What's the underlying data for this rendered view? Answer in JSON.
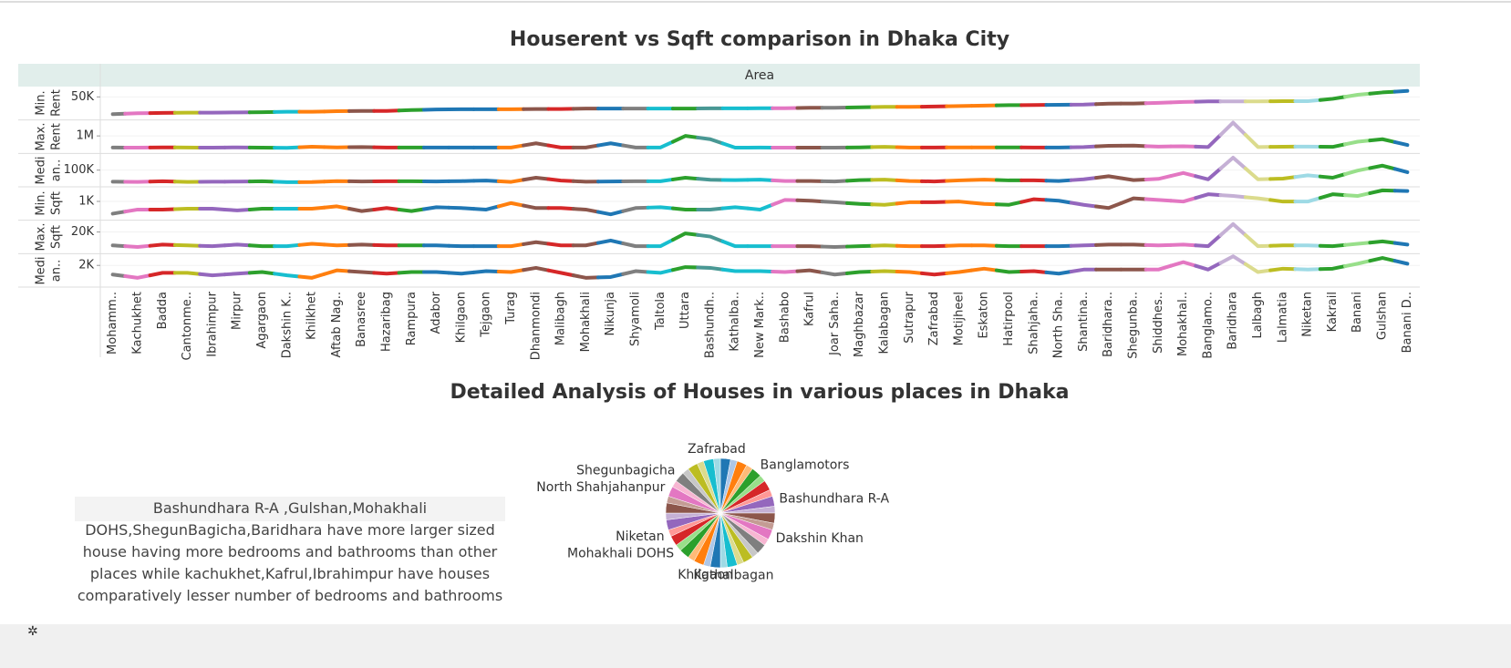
{
  "chart_data": [
    {
      "type": "line",
      "title": "Houserent vs Sqft comparison in Dhaka City",
      "header": "Area",
      "categories": [
        "Mohamm..",
        "Kachukhet",
        "Badda",
        "Cantonme..",
        "Ibrahimpur",
        "Mirpur",
        "Agargaon",
        "Dakshin K..",
        "Khilkhet",
        "Aftab Nag..",
        "Banasree",
        "Hazaribag",
        "Rampura",
        "Adabor",
        "Khilgaon",
        "Tejgaon",
        "Turag",
        "Dhanmondi",
        "Malibagh",
        "Mohakhali",
        "Nikunja",
        "Shyamoli",
        "Taltola",
        "Uttara",
        "Bashundh..",
        "Kathalba..",
        "New Mark..",
        "Bashabo",
        "Kafrul",
        "Joar Saha..",
        "Maghbazar",
        "Kalabagan",
        "Sutrapur",
        "Zafrabad",
        "Motijheel",
        "Eskaton",
        "Hatirpool",
        "Shahjaha..",
        "North Sha..",
        "Shantina..",
        "Baridhara..",
        "Shegunba..",
        "Shiddhes..",
        "Mohakhal..",
        "Banglamo..",
        "Baridhara",
        "Lalbagh",
        "Lalmatia",
        "Niketan",
        "Kakrail",
        "Banani",
        "Gulshan",
        "Banani D.."
      ],
      "colors": [
        "#7f7f7f",
        "#e377c2",
        "#d62728",
        "#bcbd22",
        "#9467bd",
        "#9467bd",
        "#2ca02c",
        "#17becf",
        "#ff7f0e",
        "#ff7f0e",
        "#8c564b",
        "#d62728",
        "#2ca02c",
        "#1f77b4",
        "#1f77b4",
        "#1f77b4",
        "#ff7f0e",
        "#8c564b",
        "#d62728",
        "#8c564b",
        "#1f77b4",
        "#7f7f7f",
        "#17becf",
        "#2ca02c",
        "#499894",
        "#17becf",
        "#17becf",
        "#e377c2",
        "#8c564b",
        "#7f7f7f",
        "#2ca02c",
        "#bcbd22",
        "#ff7f0e",
        "#d62728",
        "#ff7f0e",
        "#ff7f0e",
        "#2ca02c",
        "#d62728",
        "#1f77b4",
        "#9467bd",
        "#8c564b",
        "#8c564b",
        "#e377c2",
        "#e377c2",
        "#9467bd",
        "#c5b0d5",
        "#dbdb8d",
        "#bcbd22",
        "#9edae5",
        "#2ca02c",
        "#98df8a",
        "#2ca02c",
        "#1f77b4"
      ],
      "grid": true,
      "series": [
        {
          "name": "Min. Rent",
          "ylim": [
            0,
            70000
          ],
          "yticks": [
            {
              "value": 50000,
              "label": "50K"
            }
          ],
          "values": [
            9500,
            11500,
            12500,
            13000,
            13000,
            13500,
            14000,
            15000,
            15000,
            16500,
            17000,
            17000,
            19000,
            20500,
            21000,
            21000,
            21000,
            21500,
            21500,
            22500,
            22500,
            22500,
            22500,
            22500,
            23000,
            23000,
            23500,
            23500,
            24500,
            24500,
            25500,
            26500,
            26500,
            27500,
            28500,
            29500,
            30500,
            31000,
            31500,
            32000,
            34000,
            34500,
            36000,
            38000,
            39500,
            39500,
            39500,
            40000,
            40000,
            45500,
            55000,
            60500,
            64000
          ]
        },
        {
          "name": "Max. Rent",
          "ylim": [
            0,
            1900000
          ],
          "yticks": [
            {
              "value": 1000000,
              "label": "1M"
            }
          ],
          "values": [
            260000,
            250000,
            270000,
            260000,
            250000,
            270000,
            250000,
            240000,
            310000,
            270000,
            290000,
            260000,
            260000,
            260000,
            260000,
            260000,
            260000,
            530000,
            260000,
            260000,
            530000,
            260000,
            260000,
            1000000,
            790000,
            250000,
            260000,
            250000,
            250000,
            250000,
            270000,
            300000,
            260000,
            260000,
            270000,
            270000,
            270000,
            260000,
            260000,
            290000,
            370000,
            380000,
            320000,
            340000,
            290000,
            1850000,
            290000,
            310000,
            320000,
            300000,
            630000,
            790000,
            420000
          ]
        },
        {
          "name": "Medi an..",
          "ylim": [
            0,
            200000
          ],
          "yticks": [
            {
              "value": 100000,
              "label": "100K"
            }
          ],
          "values": [
            22000,
            21000,
            25000,
            21000,
            22000,
            23000,
            25000,
            19000,
            20000,
            26000,
            24000,
            25000,
            25000,
            24000,
            26000,
            30000,
            21000,
            49000,
            30000,
            22000,
            24000,
            25000,
            25000,
            49000,
            35000,
            33000,
            36000,
            27000,
            27000,
            24000,
            33000,
            36000,
            27000,
            24000,
            31000,
            36000,
            31000,
            31000,
            27000,
            38000,
            59000,
            33000,
            41000,
            81000,
            38000,
            184000,
            38000,
            43000,
            65000,
            49000,
            97000,
            130000,
            86000
          ]
        },
        {
          "name": "Min. Sqft",
          "ylim": [
            0,
            1750
          ],
          "yticks": [
            {
              "value": 1000,
              "label": "1K"
            }
          ],
          "values": [
            280,
            520,
            520,
            570,
            570,
            470,
            570,
            570,
            570,
            710,
            430,
            610,
            430,
            660,
            610,
            520,
            900,
            610,
            610,
            520,
            240,
            610,
            660,
            520,
            520,
            660,
            520,
            1090,
            1040,
            950,
            850,
            800,
            950,
            950,
            990,
            850,
            800,
            1130,
            1040,
            800,
            610,
            1180,
            1090,
            990,
            1420,
            1320,
            1180,
            990,
            990,
            1420,
            1320,
            1650,
            1610
          ]
        },
        {
          "name": "Max. Sqft",
          "ylim": [
            0,
            30000
          ],
          "yticks": [
            {
              "value": 20000,
              "label": "20K"
            }
          ],
          "values": [
            6500,
            4900,
            7300,
            6500,
            5700,
            7300,
            5700,
            5700,
            8100,
            6500,
            7300,
            6500,
            6500,
            6500,
            5700,
            5700,
            5700,
            9700,
            6500,
            6500,
            11400,
            5700,
            5700,
            18600,
            15400,
            5700,
            5700,
            5700,
            5700,
            4900,
            5700,
            6500,
            5700,
            5700,
            6500,
            6500,
            5700,
            5700,
            5700,
            6500,
            7300,
            7300,
            6500,
            7300,
            5700,
            28000,
            5700,
            6500,
            6500,
            5700,
            8100,
            10500,
            7300
          ]
        },
        {
          "name": "Medi an..",
          "ylim": [
            0,
            3000
          ],
          "yticks": [
            {
              "value": 2000,
              "label": "2K"
            }
          ],
          "values": [
            1080,
            750,
            1250,
            1250,
            1000,
            1170,
            1330,
            1000,
            750,
            1500,
            1330,
            1170,
            1330,
            1330,
            1170,
            1420,
            1330,
            1750,
            1250,
            750,
            830,
            1420,
            1250,
            1830,
            1750,
            1420,
            1420,
            1330,
            1500,
            1080,
            1330,
            1420,
            1330,
            1080,
            1330,
            1670,
            1330,
            1420,
            1170,
            1580,
            1580,
            1580,
            1580,
            2330,
            1580,
            2920,
            1330,
            1670,
            1580,
            1670,
            2170,
            2750,
            2170
          ]
        }
      ]
    },
    {
      "type": "pie",
      "title": "Detailed Analysis of Houses in various places in Dhaka",
      "categories": [
        null,
        null,
        null,
        null,
        "Banglamotors",
        null,
        null,
        null,
        "Bashundhara R-A",
        null,
        null,
        null,
        "Dakshin Khan",
        null,
        null,
        null,
        null,
        null,
        "Kathalbagan",
        null,
        null,
        "Khilgaon",
        null,
        null,
        null,
        "Mohakhali DOHS",
        null,
        "Niketan",
        null,
        null,
        null,
        null,
        "North Shahjahanpur",
        null,
        "Shegunbagicha",
        null,
        null,
        null,
        null,
        "Zafrabad"
      ],
      "values": [
        3,
        2,
        3,
        2,
        3,
        2,
        3,
        2,
        3,
        2,
        3,
        2,
        3,
        2,
        3,
        2,
        3,
        2,
        3,
        2,
        3,
        2,
        3,
        2,
        3,
        2,
        3,
        2,
        3,
        2,
        3,
        2,
        3,
        2,
        3,
        2,
        3,
        2,
        3,
        2
      ],
      "colors": [
        "#1f77b4",
        "#aec7e8",
        "#ff7f0e",
        "#ffbb78",
        "#2ca02c",
        "#98df8a",
        "#d62728",
        "#ff9896",
        "#9467bd",
        "#c5b0d5",
        "#8c564b",
        "#c49c94",
        "#e377c2",
        "#f7b6d2",
        "#7f7f7f",
        "#c7c7c7",
        "#bcbd22",
        "#dbdb8d",
        "#17becf",
        "#9edae5"
      ]
    }
  ],
  "text_box": "Bashundhara R-A ,Gulshan,Mohakhali DOHS,ShegunBagicha,Baridhara   have more larger sized house having more bedrooms and bathrooms than other places while kachukhet,Kafrul,Ibrahimpur have houses comparatively lesser number of bedrooms and bathrooms"
}
